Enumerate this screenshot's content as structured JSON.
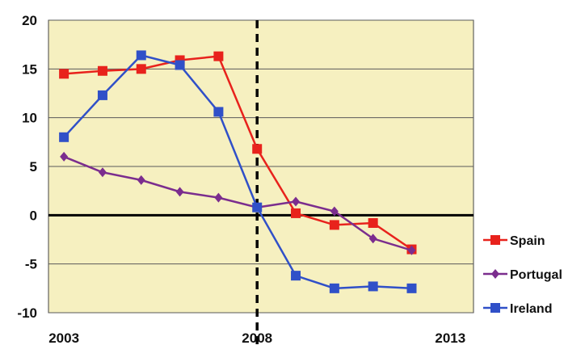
{
  "chart_data": {
    "type": "line",
    "x": [
      2003,
      2004,
      2005,
      2006,
      2007,
      2008,
      2009,
      2010,
      2011,
      2012
    ],
    "xlim": [
      2002.6,
      2013.6
    ],
    "ylim": [
      -10,
      20
    ],
    "x_ticks": [
      2003,
      2008,
      2013
    ],
    "y_ticks": [
      20,
      15,
      10,
      5,
      0,
      -5,
      -10
    ],
    "x_tick_labels": [
      "2003",
      "2008",
      "2013"
    ],
    "y_tick_labels": [
      "20",
      "15",
      "10",
      "5",
      "0",
      "-5",
      "-10"
    ],
    "vline": 2008,
    "grid": true,
    "background": "#f6f0c0",
    "legend_position": "right",
    "series": [
      {
        "name": "Spain",
        "color": "#e8221c",
        "marker": "square",
        "values": [
          14.5,
          14.8,
          15.0,
          15.9,
          16.3,
          6.8,
          0.2,
          -1.0,
          -0.8,
          -3.5
        ]
      },
      {
        "name": "Portugal",
        "color": "#7b2d8e",
        "marker": "diamond",
        "values": [
          6.0,
          4.4,
          3.6,
          2.4,
          1.8,
          0.8,
          1.4,
          0.4,
          -2.4,
          -3.6
        ]
      },
      {
        "name": "Ireland",
        "color": "#3050c8",
        "marker": "square",
        "values": [
          8.0,
          12.3,
          16.4,
          15.4,
          10.6,
          0.8,
          -6.2,
          -7.5,
          -7.3,
          -7.5
        ]
      }
    ]
  }
}
